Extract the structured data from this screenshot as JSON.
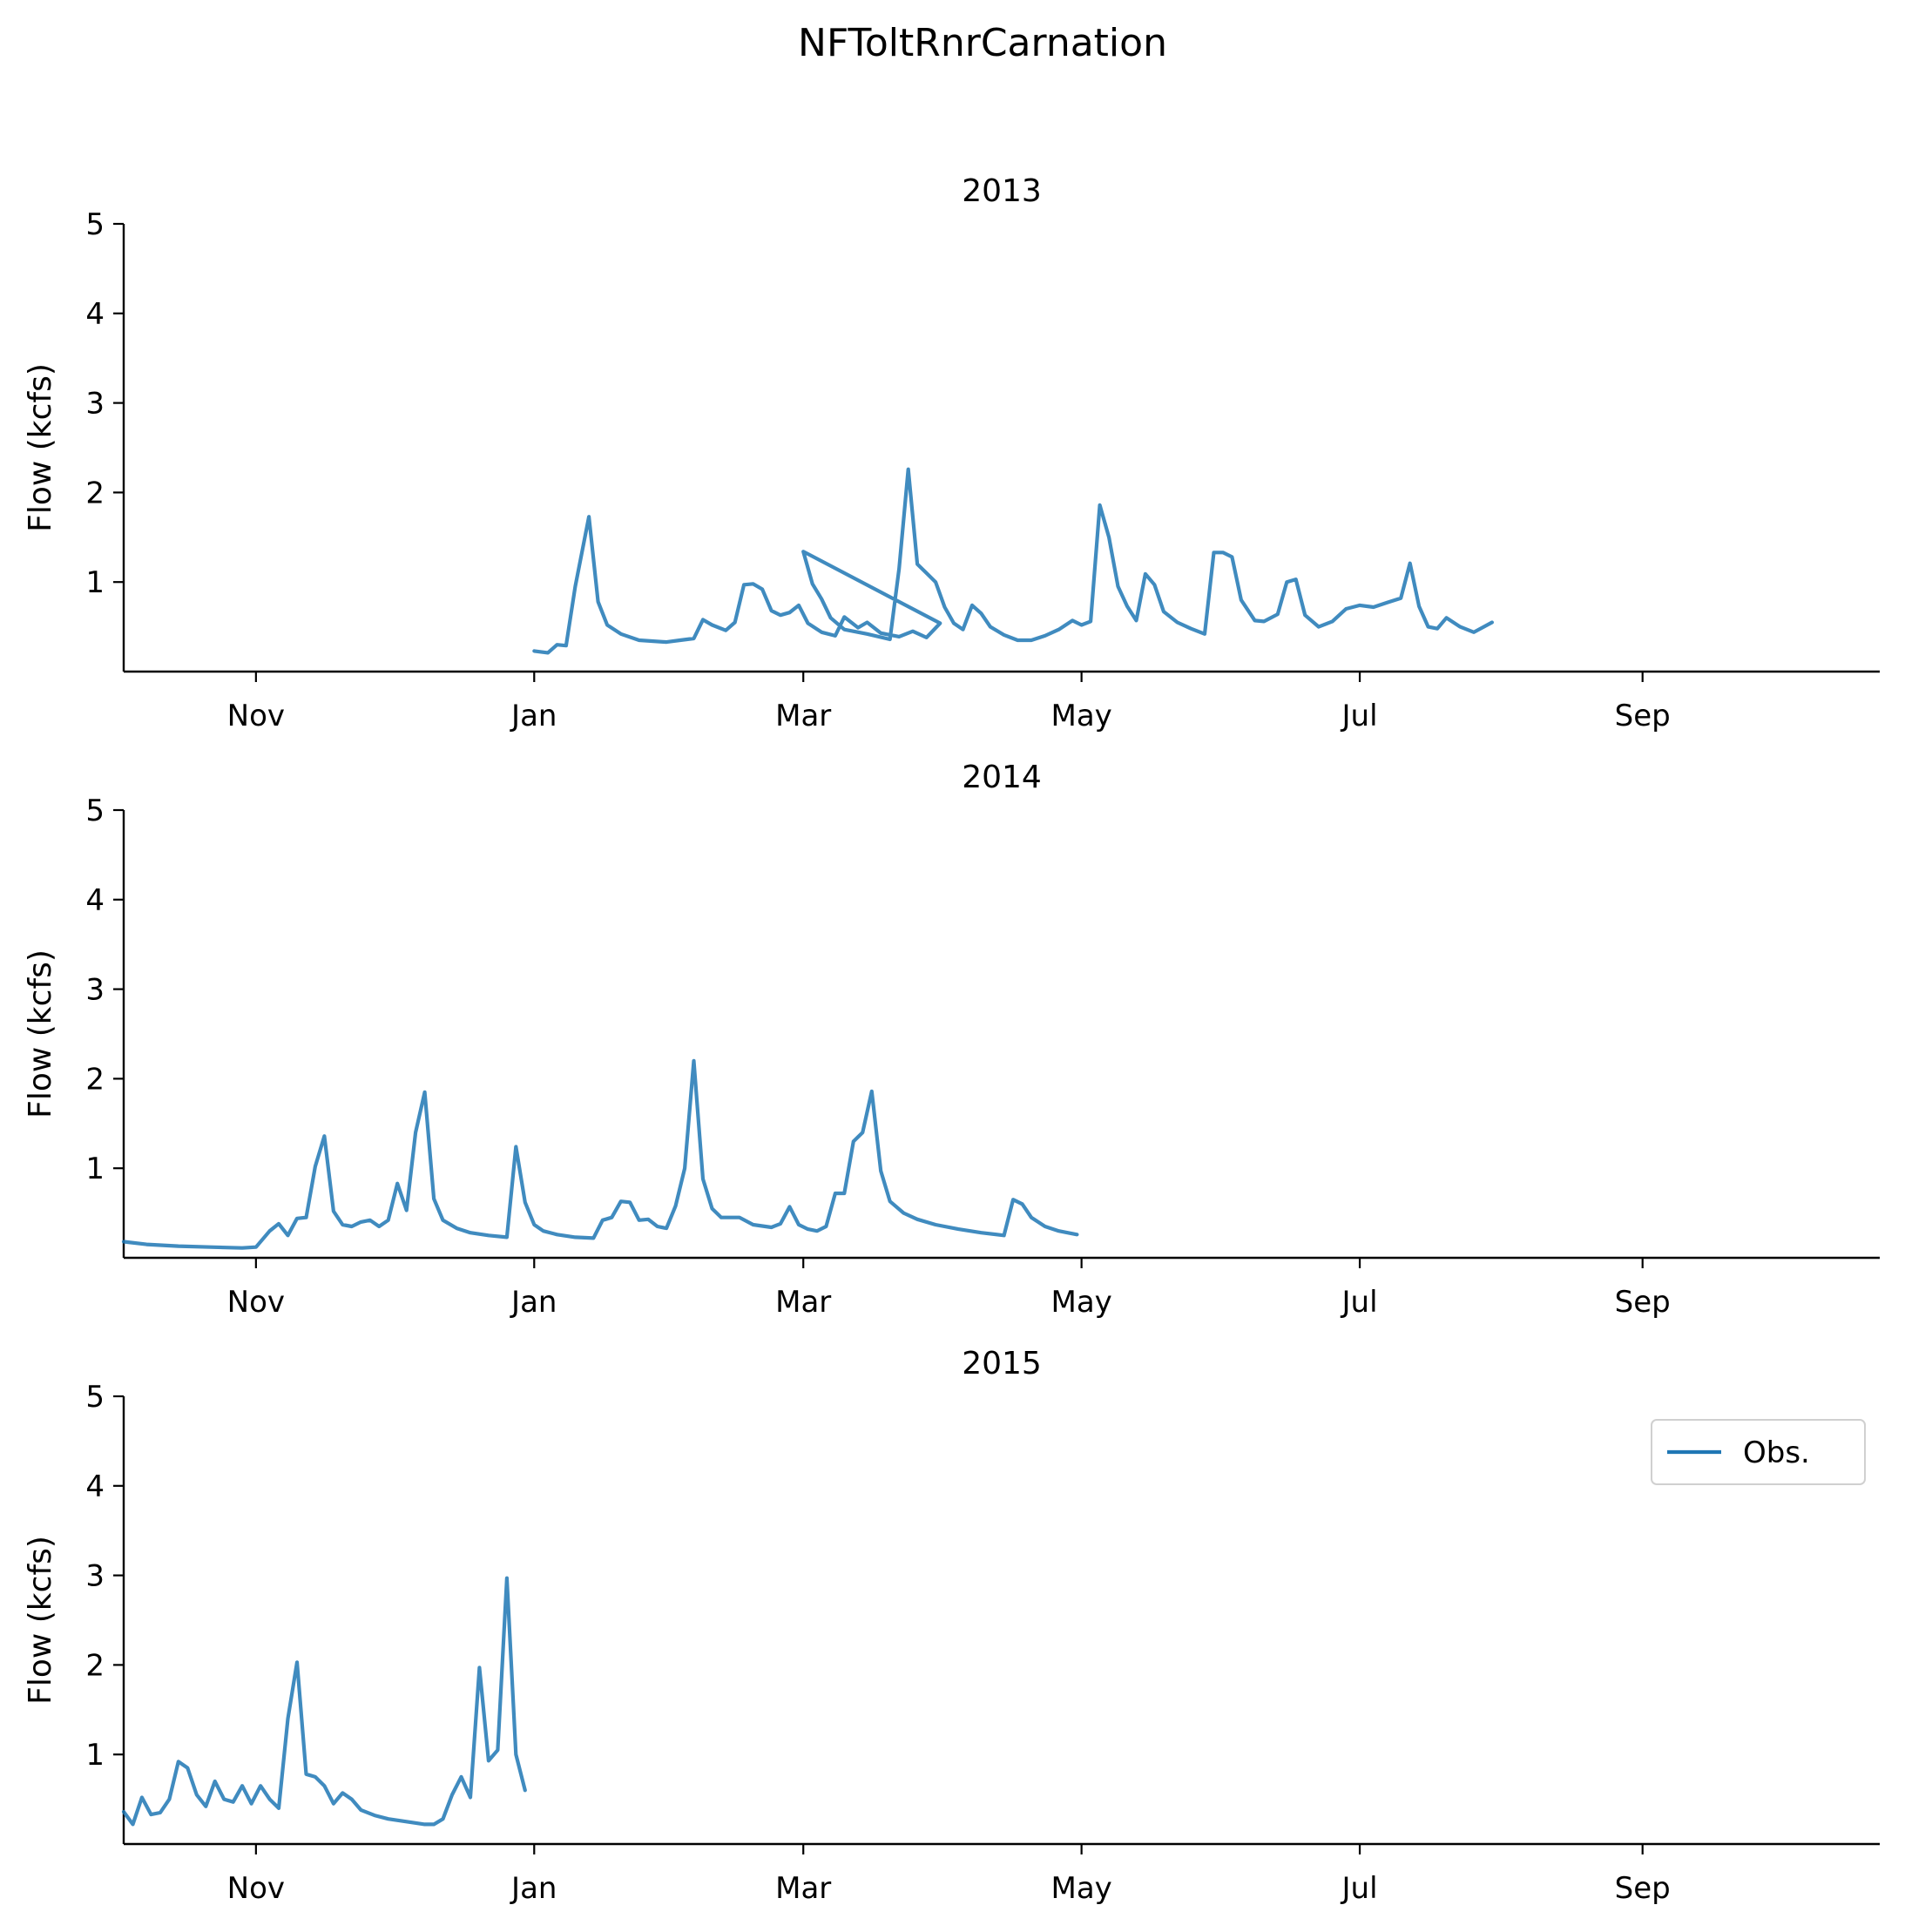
{
  "figure": {
    "title": "NFToltRnrCarnation",
    "line_color": "#1f77b4"
  },
  "chart_data": [
    {
      "type": "line",
      "title": "2013",
      "ylabel": "Flow (kcfs)",
      "ylim": [
        0,
        5
      ],
      "yticks": [
        1,
        2,
        3,
        4,
        5
      ],
      "xlim": [
        "2012-10-03",
        "2013-10-23"
      ],
      "xticks": [
        {
          "date": "2012-11-01",
          "label": "Nov"
        },
        {
          "date": "2013-01-01",
          "label": "Jan"
        },
        {
          "date": "2013-03-01",
          "label": "Mar"
        },
        {
          "date": "2013-05-01",
          "label": "May"
        },
        {
          "date": "2013-07-01",
          "label": "Jul"
        },
        {
          "date": "2013-09-01",
          "label": "Sep"
        }
      ],
      "legend": null,
      "series": [
        {
          "name": "Obs.",
          "points": [
            [
              "2013-01-01",
              0.23
            ],
            [
              "2013-01-04",
              0.21
            ],
            [
              "2013-01-06",
              0.3
            ],
            [
              "2013-01-08",
              0.29
            ],
            [
              "2013-01-10",
              0.95
            ],
            [
              "2013-01-13",
              1.73
            ],
            [
              "2013-01-15",
              0.78
            ],
            [
              "2013-01-17",
              0.52
            ],
            [
              "2013-01-20",
              0.42
            ],
            [
              "2013-01-24",
              0.35
            ],
            [
              "2013-01-30",
              0.33
            ],
            [
              "2013-02-02",
              0.35
            ],
            [
              "2013-02-05",
              0.37
            ],
            [
              "2013-02-07",
              0.58
            ],
            [
              "2013-02-09",
              0.52
            ],
            [
              "2013-02-12",
              0.46
            ],
            [
              "2013-02-14",
              0.55
            ],
            [
              "2013-02-16",
              0.97
            ],
            [
              "2013-02-18",
              0.98
            ],
            [
              "2013-02-20",
              0.92
            ],
            [
              "2013-02-22",
              0.68
            ],
            [
              "2013-02-24",
              0.63
            ],
            [
              "2013-02-26",
              0.66
            ],
            [
              "2013-02-28",
              0.74
            ],
            [
              "2013-03-02",
              0.54
            ],
            [
              "2013-03-05",
              0.44
            ],
            [
              "2013-03-08",
              0.4
            ],
            [
              "2013-03-10",
              0.61
            ],
            [
              "2013-03-13",
              0.49
            ],
            [
              "2013-03-15",
              0.55
            ],
            [
              "2013-03-18",
              0.43
            ],
            [
              "2013-03-22",
              0.39
            ],
            [
              "2013-03-25",
              0.45
            ],
            [
              "2013-03-28",
              0.38
            ],
            [
              "2013-03-31",
              0.54
            ],
            [
              "2013-03-01",
              1.34
            ],
            [
              "2013-03-03",
              0.98
            ],
            [
              "2013-03-05",
              0.81
            ],
            [
              "2013-03-07",
              0.6
            ],
            [
              "2013-03-10",
              0.47
            ],
            [
              "2013-03-15",
              0.42
            ],
            [
              "2013-03-20",
              0.36
            ],
            [
              "2013-03-22",
              1.15
            ],
            [
              "2013-03-24",
              2.26
            ],
            [
              "2013-03-26",
              1.2
            ],
            [
              "2013-03-28",
              1.1
            ],
            [
              "2013-03-30",
              1.0
            ],
            [
              "2013-04-01",
              0.72
            ],
            [
              "2013-04-03",
              0.54
            ],
            [
              "2013-04-05",
              0.47
            ],
            [
              "2013-04-07",
              0.74
            ],
            [
              "2013-04-09",
              0.65
            ],
            [
              "2013-04-11",
              0.5
            ],
            [
              "2013-04-14",
              0.41
            ],
            [
              "2013-04-17",
              0.35
            ],
            [
              "2013-04-20",
              0.35
            ],
            [
              "2013-04-23",
              0.4
            ],
            [
              "2013-04-26",
              0.47
            ],
            [
              "2013-04-29",
              0.57
            ],
            [
              "2013-05-01",
              0.52
            ],
            [
              "2013-05-03",
              0.56
            ],
            [
              "2013-05-05",
              1.86
            ],
            [
              "2013-05-07",
              1.5
            ],
            [
              "2013-05-09",
              0.95
            ],
            [
              "2013-05-11",
              0.73
            ],
            [
              "2013-05-13",
              0.57
            ],
            [
              "2013-05-15",
              1.09
            ],
            [
              "2013-05-17",
              0.97
            ],
            [
              "2013-05-19",
              0.67
            ],
            [
              "2013-05-22",
              0.55
            ],
            [
              "2013-05-25",
              0.48
            ],
            [
              "2013-05-28",
              0.42
            ],
            [
              "2013-05-30",
              1.33
            ],
            [
              "2013-06-01",
              1.33
            ],
            [
              "2013-06-03",
              1.28
            ],
            [
              "2013-06-05",
              0.8
            ],
            [
              "2013-06-08",
              0.57
            ],
            [
              "2013-06-10",
              0.56
            ],
            [
              "2013-06-13",
              0.64
            ],
            [
              "2013-06-15",
              1.0
            ],
            [
              "2013-06-17",
              1.03
            ],
            [
              "2013-06-19",
              0.63
            ],
            [
              "2013-06-22",
              0.5
            ],
            [
              "2013-06-25",
              0.56
            ],
            [
              "2013-06-28",
              0.7
            ],
            [
              "2013-07-01",
              0.74
            ],
            [
              "2013-07-04",
              0.72
            ],
            [
              "2013-07-07",
              0.77
            ],
            [
              "2013-07-10",
              0.82
            ],
            [
              "2013-07-12",
              1.21
            ],
            [
              "2013-07-14",
              0.73
            ],
            [
              "2013-07-16",
              0.5
            ],
            [
              "2013-07-18",
              0.48
            ],
            [
              "2013-07-20",
              0.6
            ],
            [
              "2013-07-23",
              0.5
            ],
            [
              "2013-07-26",
              0.44
            ],
            [
              "2013-07-30",
              0.55
            ]
          ]
        }
      ]
    },
    {
      "type": "line",
      "title": "2014",
      "ylabel": "Flow (kcfs)",
      "ylim": [
        0,
        5
      ],
      "yticks": [
        1,
        2,
        3,
        4,
        5
      ],
      "xlim": [
        "2013-10-03",
        "2014-10-23"
      ],
      "xticks": [
        {
          "date": "2013-11-01",
          "label": "Nov"
        },
        {
          "date": "2014-01-01",
          "label": "Jan"
        },
        {
          "date": "2014-03-01",
          "label": "Mar"
        },
        {
          "date": "2014-05-01",
          "label": "May"
        },
        {
          "date": "2014-07-01",
          "label": "Jul"
        },
        {
          "date": "2014-09-01",
          "label": "Sep"
        }
      ],
      "legend": null,
      "series": [
        {
          "name": "Obs.",
          "points": [
            [
              "2013-10-03",
              0.18
            ],
            [
              "2013-10-08",
              0.15
            ],
            [
              "2013-10-15",
              0.13
            ],
            [
              "2013-10-22",
              0.12
            ],
            [
              "2013-10-29",
              0.11
            ],
            [
              "2013-11-01",
              0.12
            ],
            [
              "2013-11-04",
              0.3
            ],
            [
              "2013-11-06",
              0.38
            ],
            [
              "2013-11-08",
              0.25
            ],
            [
              "2013-11-10",
              0.44
            ],
            [
              "2013-11-12",
              0.45
            ],
            [
              "2013-11-14",
              1.02
            ],
            [
              "2013-11-16",
              1.36
            ],
            [
              "2013-11-18",
              0.52
            ],
            [
              "2013-11-20",
              0.37
            ],
            [
              "2013-11-22",
              0.35
            ],
            [
              "2013-11-24",
              0.4
            ],
            [
              "2013-11-26",
              0.42
            ],
            [
              "2013-11-28",
              0.35
            ],
            [
              "2013-11-30",
              0.42
            ],
            [
              "2013-12-02",
              0.83
            ],
            [
              "2013-12-04",
              0.53
            ],
            [
              "2013-12-06",
              1.4
            ],
            [
              "2013-12-08",
              1.85
            ],
            [
              "2013-12-10",
              0.66
            ],
            [
              "2013-12-12",
              0.42
            ],
            [
              "2013-12-15",
              0.33
            ],
            [
              "2013-12-18",
              0.28
            ],
            [
              "2013-12-22",
              0.25
            ],
            [
              "2013-12-26",
              0.23
            ],
            [
              "2013-12-28",
              1.24
            ],
            [
              "2013-12-30",
              0.62
            ],
            [
              "2014-01-01",
              0.37
            ],
            [
              "2014-01-03",
              0.3
            ],
            [
              "2014-01-06",
              0.26
            ],
            [
              "2014-01-10",
              0.23
            ],
            [
              "2014-01-14",
              0.22
            ],
            [
              "2014-01-16",
              0.42
            ],
            [
              "2014-01-18",
              0.45
            ],
            [
              "2014-01-20",
              0.63
            ],
            [
              "2014-01-22",
              0.62
            ],
            [
              "2014-01-24",
              0.42
            ],
            [
              "2014-01-26",
              0.43
            ],
            [
              "2014-01-28",
              0.35
            ],
            [
              "2014-01-30",
              0.33
            ],
            [
              "2014-02-01",
              0.58
            ],
            [
              "2014-02-03",
              1.0
            ],
            [
              "2014-02-05",
              2.2
            ],
            [
              "2014-02-07",
              0.88
            ],
            [
              "2014-02-09",
              0.55
            ],
            [
              "2014-02-11",
              0.45
            ],
            [
              "2014-02-15",
              0.45
            ],
            [
              "2014-02-18",
              0.37
            ],
            [
              "2014-02-22",
              0.34
            ],
            [
              "2014-02-24",
              0.38
            ],
            [
              "2014-02-26",
              0.57
            ],
            [
              "2014-02-28",
              0.37
            ],
            [
              "2014-03-02",
              0.32
            ],
            [
              "2014-03-04",
              0.3
            ],
            [
              "2014-03-06",
              0.35
            ],
            [
              "2014-03-08",
              0.72
            ],
            [
              "2014-03-10",
              0.72
            ],
            [
              "2014-03-12",
              1.3
            ],
            [
              "2014-03-14",
              1.4
            ],
            [
              "2014-03-16",
              1.86
            ],
            [
              "2014-03-18",
              0.97
            ],
            [
              "2014-03-20",
              0.63
            ],
            [
              "2014-03-23",
              0.5
            ],
            [
              "2014-03-26",
              0.43
            ],
            [
              "2014-03-30",
              0.37
            ],
            [
              "2014-04-04",
              0.32
            ],
            [
              "2014-04-09",
              0.28
            ],
            [
              "2014-04-14",
              0.25
            ],
            [
              "2014-04-16",
              0.65
            ],
            [
              "2014-04-18",
              0.6
            ],
            [
              "2014-04-20",
              0.45
            ],
            [
              "2014-04-23",
              0.35
            ],
            [
              "2014-04-26",
              0.3
            ],
            [
              "2014-04-30",
              0.26
            ]
          ]
        }
      ]
    },
    {
      "type": "line",
      "title": "2015",
      "ylabel": "Flow (kcfs)",
      "ylim": [
        0,
        5
      ],
      "yticks": [
        1,
        2,
        3,
        4,
        5
      ],
      "xlim": [
        "2014-10-03",
        "2015-10-23"
      ],
      "xticks": [
        {
          "date": "2014-11-01",
          "label": "Nov"
        },
        {
          "date": "2015-01-01",
          "label": "Jan"
        },
        {
          "date": "2015-03-01",
          "label": "Mar"
        },
        {
          "date": "2015-05-01",
          "label": "May"
        },
        {
          "date": "2015-07-01",
          "label": "Jul"
        },
        {
          "date": "2015-09-01",
          "label": "Sep"
        }
      ],
      "legend": {
        "label": "Obs.",
        "location": "upper right"
      },
      "series": [
        {
          "name": "Obs.",
          "points": [
            [
              "2014-10-03",
              0.36
            ],
            [
              "2014-10-05",
              0.22
            ],
            [
              "2014-10-07",
              0.52
            ],
            [
              "2014-10-09",
              0.33
            ],
            [
              "2014-10-11",
              0.35
            ],
            [
              "2014-10-13",
              0.5
            ],
            [
              "2014-10-15",
              0.92
            ],
            [
              "2014-10-17",
              0.85
            ],
            [
              "2014-10-19",
              0.55
            ],
            [
              "2014-10-21",
              0.42
            ],
            [
              "2014-10-23",
              0.7
            ],
            [
              "2014-10-25",
              0.5
            ],
            [
              "2014-10-27",
              0.47
            ],
            [
              "2014-10-29",
              0.65
            ],
            [
              "2014-10-31",
              0.45
            ],
            [
              "2014-11-02",
              0.65
            ],
            [
              "2014-11-04",
              0.5
            ],
            [
              "2014-11-06",
              0.4
            ],
            [
              "2014-11-08",
              1.4
            ],
            [
              "2014-11-10",
              2.03
            ],
            [
              "2014-11-12",
              0.78
            ],
            [
              "2014-11-14",
              0.75
            ],
            [
              "2014-11-16",
              0.65
            ],
            [
              "2014-11-18",
              0.45
            ],
            [
              "2014-11-20",
              0.57
            ],
            [
              "2014-11-22",
              0.5
            ],
            [
              "2014-11-24",
              0.38
            ],
            [
              "2014-11-27",
              0.32
            ],
            [
              "2014-11-30",
              0.28
            ],
            [
              "2014-12-04",
              0.25
            ],
            [
              "2014-12-08",
              0.22
            ],
            [
              "2014-12-10",
              0.22
            ],
            [
              "2014-12-12",
              0.28
            ],
            [
              "2014-12-14",
              0.55
            ],
            [
              "2014-12-16",
              0.75
            ],
            [
              "2014-12-18",
              0.52
            ],
            [
              "2014-12-20",
              1.97
            ],
            [
              "2014-12-22",
              0.93
            ],
            [
              "2014-12-24",
              1.05
            ],
            [
              "2014-12-26",
              2.97
            ],
            [
              "2014-12-28",
              1.0
            ],
            [
              "2014-12-30",
              0.6
            ]
          ]
        }
      ]
    }
  ]
}
